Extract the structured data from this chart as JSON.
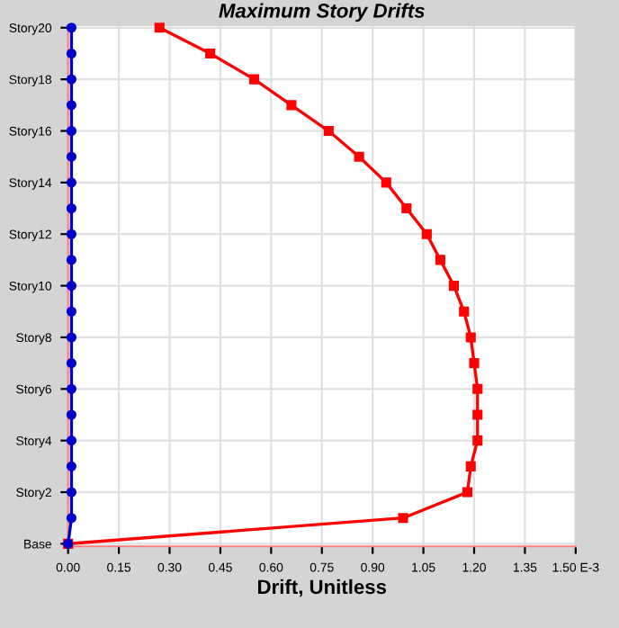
{
  "chart_data": {
    "type": "line",
    "title": "Maximum Story Drifts",
    "xlabel": "Drift, Unitless",
    "orientation": "horizontal",
    "categories": [
      "Story20",
      null,
      "Story18",
      null,
      "Story16",
      null,
      "Story14",
      null,
      "Story12",
      null,
      "Story10",
      null,
      "Story8",
      null,
      "Story6",
      null,
      "Story4",
      null,
      "Story2",
      null,
      "Base"
    ],
    "series": [
      {
        "color": "#ff0000",
        "marker": "square",
        "values": [
          0.27,
          0.42,
          0.55,
          0.66,
          0.77,
          0.86,
          0.94,
          1.0,
          1.06,
          1.1,
          1.14,
          1.17,
          1.19,
          1.2,
          1.21,
          1.21,
          1.21,
          1.19,
          1.18,
          0.99,
          0
        ]
      },
      {
        "color": "#0000cc",
        "marker": "circle",
        "values": [
          0.01,
          0.01,
          0.01,
          0.01,
          0.01,
          0.01,
          0.01,
          0.01,
          0.01,
          0.01,
          0.01,
          0.01,
          0.01,
          0.01,
          0.01,
          0.01,
          0.01,
          0.01,
          0.01,
          0.01,
          0
        ]
      }
    ],
    "xlim": [
      0,
      1.5
    ],
    "xticks": [
      {
        "value": 0,
        "label": "0.00"
      },
      {
        "value": 0.15,
        "label": "0.15"
      },
      {
        "value": 0.3,
        "label": "0.30"
      },
      {
        "value": 0.45,
        "label": "0.45"
      },
      {
        "value": 0.6,
        "label": "0.60"
      },
      {
        "value": 0.75,
        "label": "0.75"
      },
      {
        "value": 0.9,
        "label": "0.90"
      },
      {
        "value": 1.05,
        "label": "1.05"
      },
      {
        "value": 1.2,
        "label": "1.20"
      },
      {
        "value": 1.35,
        "label": "1.35"
      },
      {
        "value": 1.5,
        "label": "1.50 E-3"
      }
    ],
    "grid": true,
    "line_style": "solid"
  }
}
